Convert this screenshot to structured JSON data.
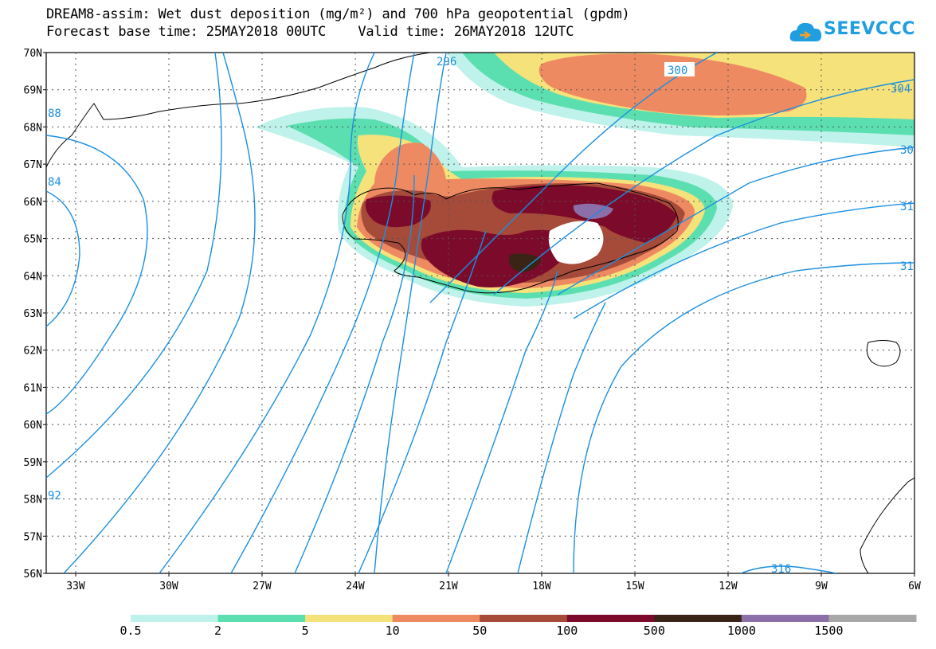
{
  "title": {
    "line1": "DREAM8-assim: Wet dust deposition (mg/m²) and 700 hPa geopotential (gpdm)",
    "line2": "Forecast base time: 25MAY2018 00UTC    Valid time: 26MAY2018 12UTC"
  },
  "logo": {
    "text": "SEEVCCC",
    "icon": "cloud-icon"
  },
  "map": {
    "lat_labels": [
      "70N",
      "69N",
      "68N",
      "67N",
      "66N",
      "65N",
      "64N",
      "63N",
      "62N",
      "61N",
      "60N",
      "59N",
      "58N",
      "57N",
      "56N"
    ],
    "lon_labels": [
      "33W",
      "30W",
      "27W",
      "24W",
      "21W",
      "18W",
      "15W",
      "12W",
      "9W",
      "6W"
    ],
    "contour_labels": [
      "296",
      "300",
      "304",
      "30",
      "31",
      "31",
      "316",
      "88",
      "84",
      "92"
    ],
    "colors": {
      "contour": "#1a8fe0",
      "coast": "#000000"
    }
  },
  "legend": {
    "labels": [
      "0.5",
      "2",
      "5",
      "10",
      "50",
      "100",
      "500",
      "1000",
      "1500"
    ],
    "colors": [
      "#bff2ea",
      "#5cdfb0",
      "#f6e27a",
      "#ee8a62",
      "#a64a3a",
      "#7c0a2a",
      "#3a2415",
      "#8c6ea8",
      "#a8a8a8"
    ]
  }
}
